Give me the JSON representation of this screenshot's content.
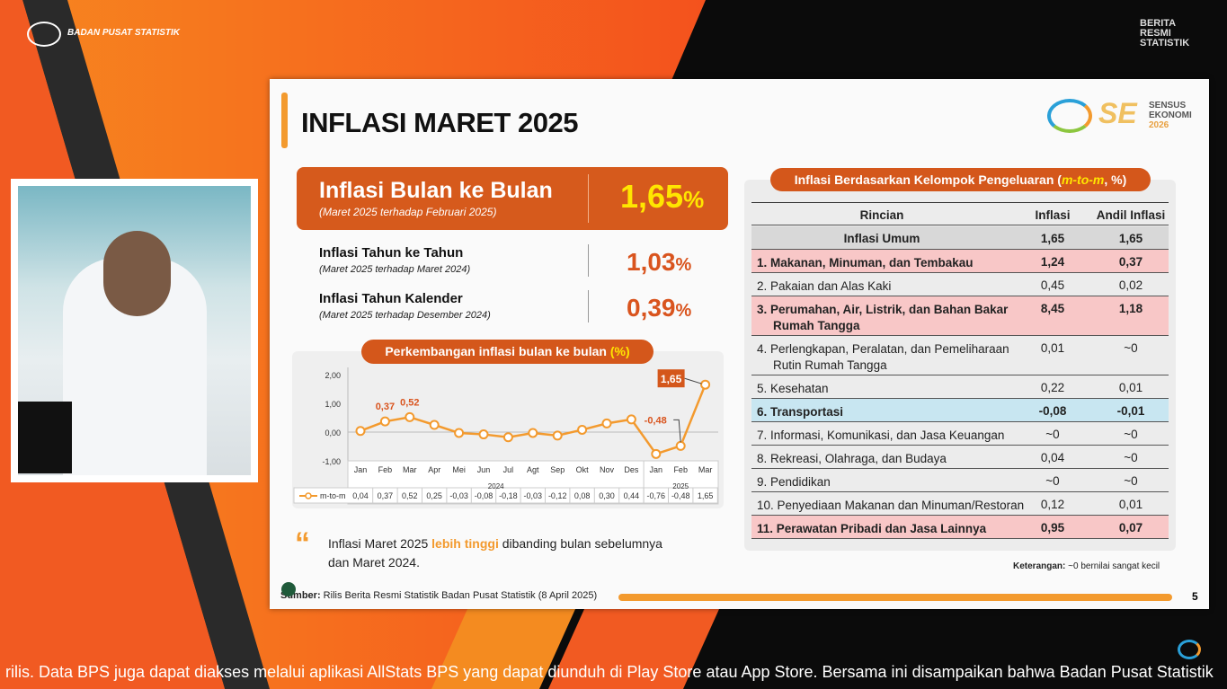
{
  "header": {
    "org": "BADAN PUSAT STATISTIK",
    "brs": [
      "BERITA",
      "RESMI",
      "STATISTIK"
    ]
  },
  "slide": {
    "title": "INFLASI MARET 2025",
    "logo_text": [
      "SENSUS",
      "EKONOMI",
      "2026"
    ],
    "mtm": {
      "label": "Inflasi Bulan ke Bulan",
      "sub": "(Maret 2025 terhadap Februari 2025)",
      "value": "1,65",
      "unit": "%"
    },
    "yoy": {
      "label": "Inflasi Tahun ke Tahun",
      "sub": "(Maret 2025 terhadap Maret 2024)",
      "value": "1,03",
      "unit": "%"
    },
    "ytd": {
      "label": "Inflasi Tahun Kalender",
      "sub": "(Maret 2025 terhadap Desember 2024)",
      "value": "0,39",
      "unit": "%"
    },
    "chart_title": "Perkembangan inflasi bulan ke bulan ",
    "chart_title_unit": "(%)",
    "quote": {
      "pre": "Inflasi Maret 2025 ",
      "hl": "lebih tinggi",
      "post": " dibanding bulan sebelumnya",
      "line2": "dan Maret 2024."
    },
    "source_label": "Sumber:",
    "source": " Rilis Berita Resmi Statistik Badan Pusat Statistik (8 April 2025)",
    "page": "5",
    "table_title": "Inflasi Berdasarkan Kelompok Pengeluaran (",
    "table_title_hl": "m-to-m",
    ", %)": "",
    "table_title_end": ", %)",
    "table_headers": [
      "Rincian",
      "Inflasi",
      "Andil Inflasi"
    ],
    "table_rows": [
      {
        "name": "Inflasi Umum",
        "inf": "1,65",
        "andil": "1,65"
      },
      {
        "name": "1. Makanan, Minuman, dan Tembakau",
        "inf": "1,24",
        "andil": "0,37"
      },
      {
        "name": "2. Pakaian dan Alas Kaki",
        "inf": "0,45",
        "andil": "0,02"
      },
      {
        "name": "3. Perumahan, Air, Listrik, dan Bahan Bakar",
        "name2": "Rumah Tangga",
        "inf": "8,45",
        "andil": "1,18"
      },
      {
        "name": "4. Perlengkapan, Peralatan, dan Pemeliharaan",
        "name2": "Rutin Rumah Tangga",
        "inf": "0,01",
        "andil": "~0"
      },
      {
        "name": "5. Kesehatan",
        "inf": "0,22",
        "andil": "0,01"
      },
      {
        "name": "6. Transportasi",
        "inf": "-0,08",
        "andil": "-0,01"
      },
      {
        "name": "7. Informasi, Komunikasi, dan Jasa Keuangan",
        "inf": "~0",
        "andil": "~0"
      },
      {
        "name": "8. Rekreasi, Olahraga, dan Budaya",
        "inf": "0,04",
        "andil": "~0"
      },
      {
        "name": "9. Pendidikan",
        "inf": "~0",
        "andil": "~0"
      },
      {
        "name": "10. Penyediaan Makanan dan Minuman/Restoran",
        "inf": "0,12",
        "andil": "0,01"
      },
      {
        "name": "11. Perawatan Pribadi dan Jasa Lainnya",
        "inf": "0,95",
        "andil": "0,07"
      }
    ],
    "note_label": "Keterangan:",
    "note": " ~0 bernilai sangat kecil"
  },
  "chart_data": {
    "type": "line",
    "title": "Perkembangan inflasi bulan ke bulan (%)",
    "categories": [
      "Jan",
      "Feb",
      "Mar",
      "Apr",
      "Mei",
      "Jun",
      "Jul",
      "Agt",
      "Sep",
      "Okt",
      "Nov",
      "Des",
      "Jan",
      "Feb",
      "Mar"
    ],
    "years": [
      "2024",
      "2025"
    ],
    "series": [
      {
        "name": "m-to-m",
        "values": [
          0.04,
          0.37,
          0.52,
          0.25,
          -0.03,
          -0.08,
          -0.18,
          -0.03,
          -0.12,
          0.08,
          0.3,
          0.44,
          -0.76,
          -0.48,
          1.65
        ]
      }
    ],
    "value_labels": [
      "0,04",
      "0,37",
      "0,52",
      "0,25",
      "-0,03",
      "-0,08",
      "-0,18",
      "-0,03",
      "-0,12",
      "0,08",
      "0,30",
      "0,44",
      "-0,76",
      "-0,48",
      "1,65"
    ],
    "yticks": [
      "2,00",
      "1,00",
      "0,00",
      "-1,00"
    ],
    "ylim": [
      -1,
      2
    ],
    "color": "#f39a2e"
  },
  "ticker": "rilis. Data BPS juga dapat diakses melalui aplikasi AllStats BPS yang dapat diunduh di Play Store atau App Store. Bersama ini disampaikan bahwa Badan Pusat Statistik"
}
